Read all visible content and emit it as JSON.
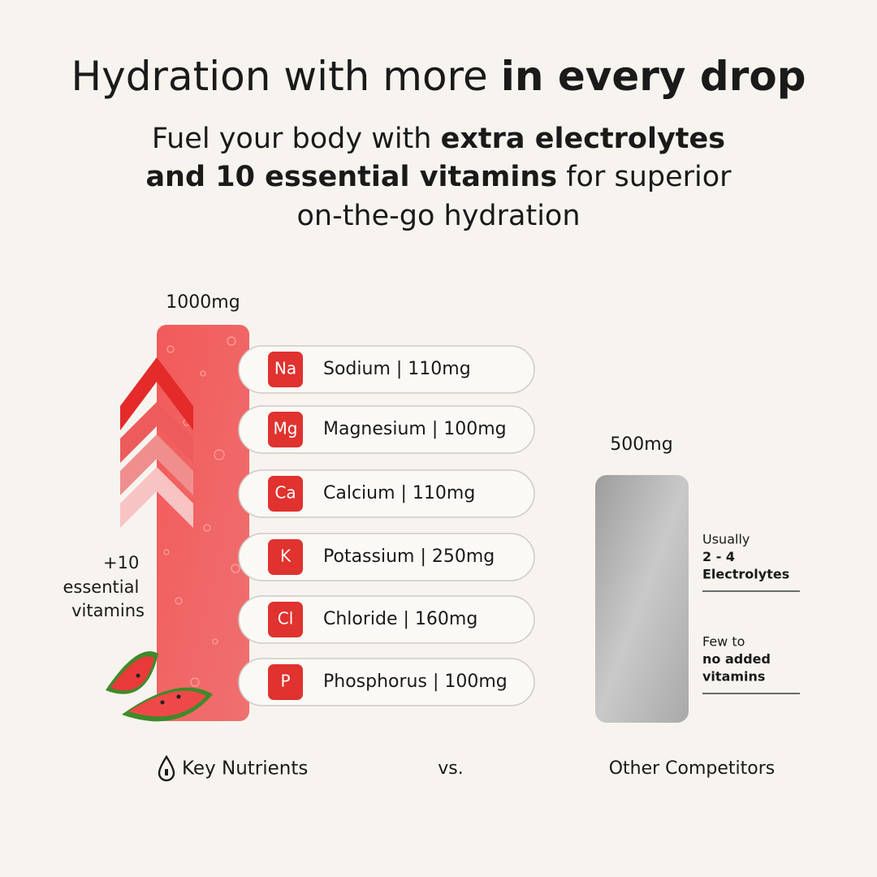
{
  "header": {
    "title": {
      "regular": "Hydration with more",
      "bold": "in every drop"
    },
    "subtitle": [
      {
        "regular": "Fuel your body with",
        "bold": "extra electrolytes"
      },
      {
        "bold": "and 10 essential vitamins",
        "regular": "for superior"
      },
      {
        "regular": "on-the-go hydration"
      }
    ]
  },
  "left": {
    "amount": "1000mg",
    "side_label": [
      "+10",
      "essential",
      "vitamins"
    ],
    "nutrients": [
      {
        "symbol": "Na",
        "label": "Sodium | 110mg"
      },
      {
        "symbol": "Mg",
        "label": "Magnesium | 100mg"
      },
      {
        "symbol": "Ca",
        "label": "Calcium | 110mg"
      },
      {
        "symbol": "K",
        "label": "Potassium | 250mg"
      },
      {
        "symbol": "Cl",
        "label": "Chloride | 160mg"
      },
      {
        "symbol": "P",
        "label": "Phosphorus | 100mg"
      }
    ],
    "caption": "Key Nutrients"
  },
  "vs": "vs.",
  "right": {
    "amount": "500mg",
    "notes": [
      {
        "regular": "Usually",
        "bold": [
          "2 - 4",
          "Electrolytes"
        ]
      },
      {
        "regular": "Few to",
        "bold": [
          "no added",
          "vitamins"
        ]
      }
    ],
    "caption": "Other Competitors"
  }
}
